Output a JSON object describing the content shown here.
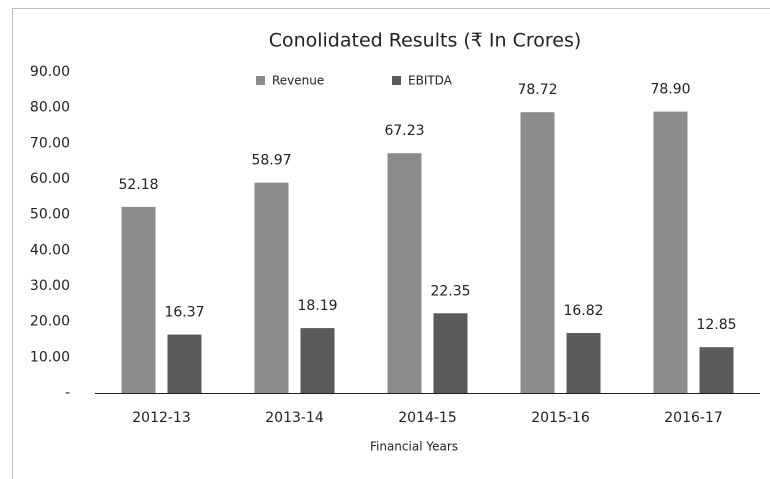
{
  "chart_data": {
    "type": "bar",
    "title": "Conolidated Results (₹ In Crores)",
    "x_label": "Financial Years",
    "categories": [
      "2012-13",
      "2013-14",
      "2014-15",
      "2015-16",
      "2016-17"
    ],
    "series": [
      {
        "name": "Revenue",
        "color": "#8c8c8c",
        "values": [
          52.18,
          58.97,
          67.23,
          78.72,
          78.9
        ],
        "value_labels": [
          "52.18",
          "58.97",
          "67.23",
          "78.72",
          "78.90"
        ]
      },
      {
        "name": "EBITDA",
        "color": "#5b5b5b",
        "values": [
          16.37,
          18.19,
          22.35,
          16.82,
          12.85
        ],
        "value_labels": [
          "16.37",
          "18.19",
          "22.35",
          "16.82",
          "12.85"
        ]
      }
    ],
    "ylim": [
      0,
      90
    ],
    "yticks": [
      {
        "value": 0,
        "label": "-"
      },
      {
        "value": 10,
        "label": "10.00"
      },
      {
        "value": 20,
        "label": "20.00"
      },
      {
        "value": 30,
        "label": "30.00"
      },
      {
        "value": 40,
        "label": "40.00"
      },
      {
        "value": 50,
        "label": "50.00"
      },
      {
        "value": 60,
        "label": "60.00"
      },
      {
        "value": 70,
        "label": "70.00"
      },
      {
        "value": 80,
        "label": "80.00"
      },
      {
        "value": 90,
        "label": "90.00"
      }
    ],
    "grid": false,
    "legend": "top"
  }
}
